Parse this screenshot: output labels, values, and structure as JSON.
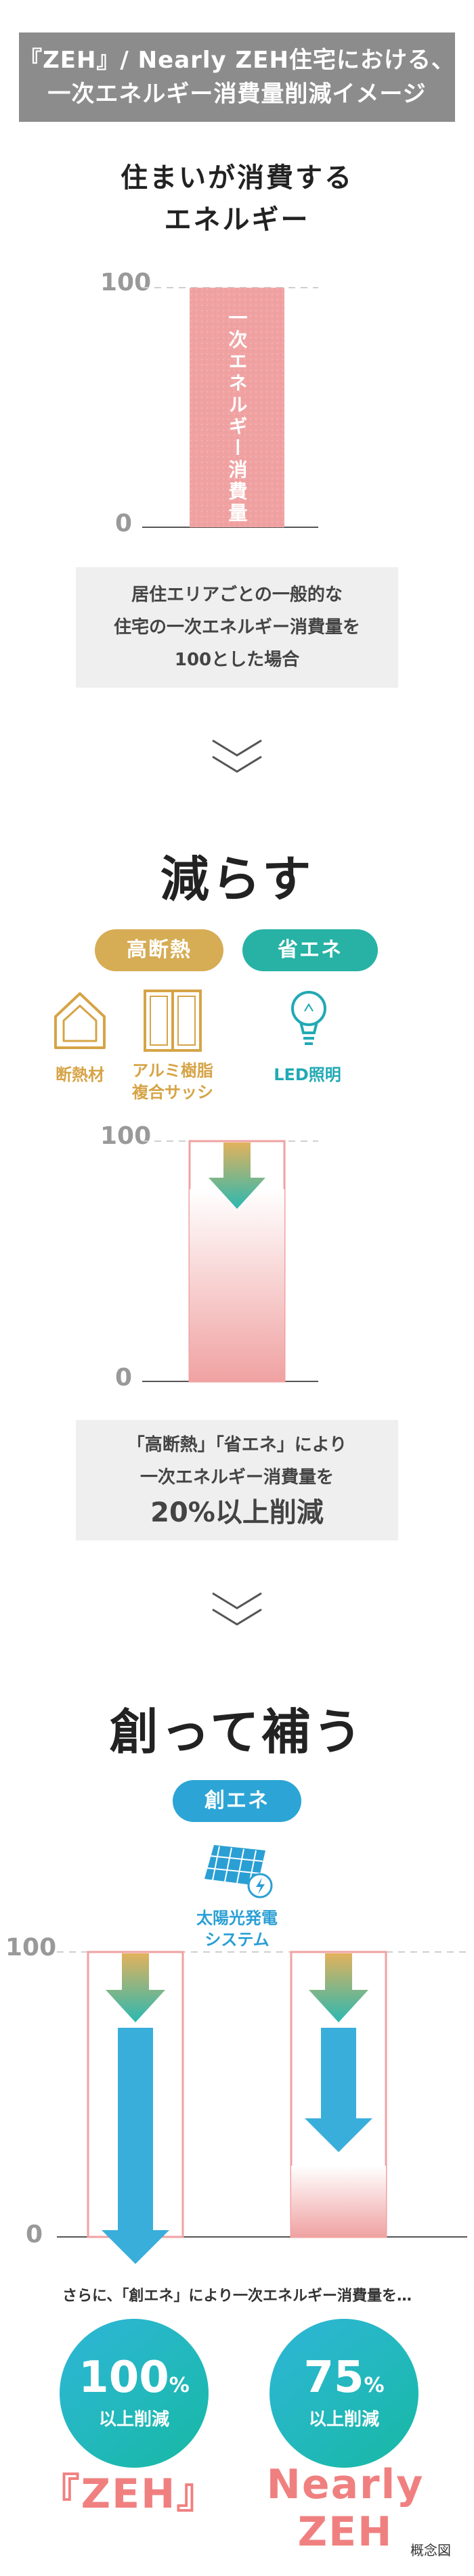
{
  "title": {
    "line1": "『ZEH』/ Nearly ZEH住宅における、",
    "line2": "一次エネルギー消費量削減イメージ"
  },
  "section1": {
    "heading_line1": "住まいが消費する",
    "heading_line2": "エネルギー",
    "bar_label": "一次エネルギー消費量",
    "note_line1": "居住エリアごとの一般的な",
    "note_line2": "住宅の一次エネルギー消費量を",
    "note_line3": "100とした場合"
  },
  "chart_data": [
    {
      "type": "bar",
      "categories": [
        "一次エネルギー消費量"
      ],
      "values": [
        100
      ],
      "ylim": [
        0,
        100
      ],
      "y_ticks": [
        "0",
        "100"
      ]
    },
    {
      "type": "bar",
      "categories": [
        "高断熱・省エネ"
      ],
      "values": [
        80
      ],
      "ylim": [
        0,
        100
      ],
      "y_ticks": [
        "0",
        "100"
      ]
    },
    {
      "type": "bar",
      "categories": [
        "ZEH",
        "Nearly ZEH"
      ],
      "values": [
        0,
        25
      ],
      "ylim": [
        0,
        100
      ],
      "y_ticks": [
        "0",
        "100"
      ]
    }
  ],
  "section2": {
    "heading": "減らす",
    "pill_insulation": "高断熱",
    "pill_efficiency": "省エネ",
    "icon_insulation": "断熱材",
    "icon_sash_line1": "アルミ樹脂",
    "icon_sash_line2": "複合サッシ",
    "icon_led": "LED照明",
    "note_line1": "「高断熱」「省エネ」により",
    "note_line2": "一次エネルギー消費量を",
    "note_line3": "20%以上削減"
  },
  "section3": {
    "heading": "創って補う",
    "pill_generation": "創エネ",
    "solar_line1": "太陽光発電",
    "solar_line2": "システム",
    "lead": "さらに、「創エネ」により一次エネルギー消費量を…",
    "circle1_num": "100",
    "circle1_unit": "%",
    "circle1_sub": "以上削減",
    "circle2_num": "75",
    "circle2_unit": "%",
    "circle2_sub": "以上削減",
    "label_zeh": "『ZEH』",
    "label_nearly": "Nearly ZEH",
    "caption": "概念図"
  },
  "colors": {
    "bar_pink": "#f0a4a4",
    "gold": "#d6ac55",
    "teal": "#27b2a5",
    "blue": "#2ca5d6"
  }
}
